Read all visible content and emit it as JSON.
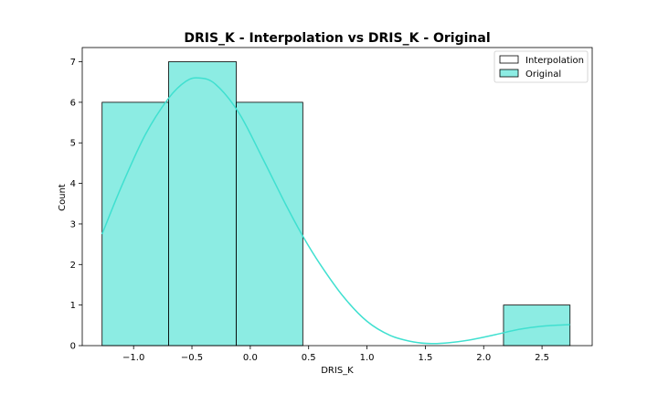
{
  "chart_data": {
    "type": "bar",
    "title": "DRIS_K - Interpolation vs DRIS_K - Original",
    "xlabel": "DRIS_K",
    "ylabel": "Count",
    "xlim": [
      -1.44,
      2.93
    ],
    "ylim": [
      0,
      7.35
    ],
    "xticks": [
      -1.0,
      -0.5,
      0.0,
      0.5,
      1.0,
      1.5,
      2.0,
      2.5
    ],
    "xtick_labels": [
      "−1.0",
      "−0.5",
      "0.0",
      "0.5",
      "1.0",
      "1.5",
      "2.0",
      "2.5"
    ],
    "yticks": [
      0,
      1,
      2,
      3,
      4,
      5,
      6,
      7
    ],
    "ytick_labels": [
      "0",
      "1",
      "2",
      "3",
      "4",
      "5",
      "6",
      "7"
    ],
    "grid": false,
    "legend_position": "top-right",
    "series": [
      {
        "name": "Interpolation",
        "color": "#ffffff",
        "bins": []
      },
      {
        "name": "Original",
        "color": "#40e0d0",
        "bins": [
          {
            "x0": -1.27,
            "x1": -0.7,
            "count": 6
          },
          {
            "x0": -0.7,
            "x1": -0.12,
            "count": 7
          },
          {
            "x0": -0.12,
            "x1": 0.45,
            "count": 6
          },
          {
            "x0": 0.45,
            "x1": 1.02,
            "count": 0
          },
          {
            "x0": 1.02,
            "x1": 1.6,
            "count": 0
          },
          {
            "x0": 1.6,
            "x1": 2.17,
            "count": 0
          },
          {
            "x0": 2.17,
            "x1": 2.74,
            "count": 1
          }
        ],
        "kde": {
          "x": [
            -1.27,
            -1.1,
            -0.9,
            -0.7,
            -0.55,
            -0.44,
            -0.3,
            -0.1,
            0.1,
            0.3,
            0.45,
            0.6,
            0.8,
            1.0,
            1.2,
            1.4,
            1.55,
            1.7,
            1.9,
            2.1,
            2.3,
            2.5,
            2.74
          ],
          "y": [
            2.75,
            3.95,
            5.2,
            6.1,
            6.52,
            6.6,
            6.45,
            5.75,
            4.65,
            3.5,
            2.7,
            2.0,
            1.2,
            0.6,
            0.25,
            0.09,
            0.05,
            0.07,
            0.15,
            0.27,
            0.4,
            0.48,
            0.52
          ]
        }
      }
    ]
  }
}
